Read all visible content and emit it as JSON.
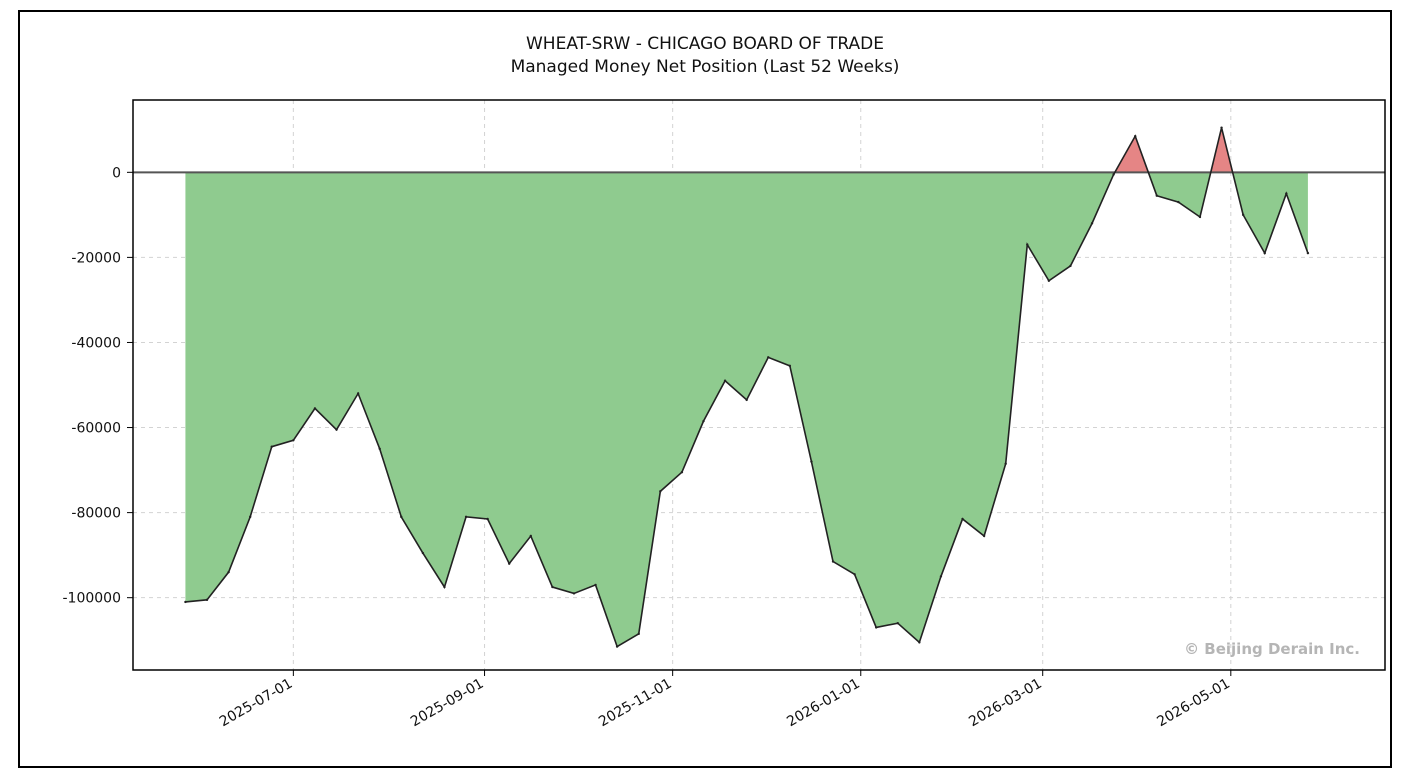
{
  "title_line1": "WHEAT-SRW - CHICAGO BOARD OF TRADE",
  "title_line2": "Managed Money Net Position (Last 52 Weeks)",
  "watermark": "© Beijing Derain Inc.",
  "colors": {
    "positive": "#e58585",
    "negative": "#8fcb8f",
    "line": "#222222",
    "grid": "#d3d3d3"
  },
  "chart_data": {
    "type": "area",
    "title": "WHEAT-SRW - CHICAGO BOARD OF TRADE",
    "subtitle": "Managed Money Net Position (Last 52 Weeks)",
    "xlabel": "",
    "ylabel": "",
    "ylim": [
      -117000,
      17000
    ],
    "xlim": [
      "2025-05-10",
      "2026-06-20"
    ],
    "grid": true,
    "y_ticks": [
      0,
      -20000,
      -40000,
      -60000,
      -80000,
      -100000
    ],
    "x_ticks": [
      "2025-07-01",
      "2025-09-01",
      "2025-11-01",
      "2026-01-01",
      "2026-03-01",
      "2026-05-01"
    ],
    "x": [
      "2025-05-27",
      "2025-06-03",
      "2025-06-10",
      "2025-06-17",
      "2025-06-24",
      "2025-07-01",
      "2025-07-08",
      "2025-07-15",
      "2025-07-22",
      "2025-07-29",
      "2025-08-05",
      "2025-08-12",
      "2025-08-19",
      "2025-08-26",
      "2025-09-02",
      "2025-09-09",
      "2025-09-16",
      "2025-09-23",
      "2025-09-30",
      "2025-10-07",
      "2025-10-14",
      "2025-10-21",
      "2025-10-28",
      "2025-11-04",
      "2025-11-11",
      "2025-11-18",
      "2025-11-25",
      "2025-12-02",
      "2025-12-09",
      "2025-12-16",
      "2025-12-23",
      "2025-12-30",
      "2026-01-06",
      "2026-01-13",
      "2026-01-20",
      "2026-01-27",
      "2026-02-03",
      "2026-02-10",
      "2026-02-17",
      "2026-02-24",
      "2026-03-03",
      "2026-03-10",
      "2026-03-17",
      "2026-03-24",
      "2026-03-31",
      "2026-04-07",
      "2026-04-14",
      "2026-04-21",
      "2026-04-28",
      "2026-05-05",
      "2026-05-12",
      "2026-05-19",
      "2026-05-26"
    ],
    "values": [
      -101000,
      -100500,
      -94000,
      -81000,
      -64500,
      -63000,
      -55500,
      -60500,
      -52000,
      -65000,
      -81000,
      -89500,
      -97500,
      -81000,
      -81500,
      -92000,
      -85500,
      -97500,
      -99000,
      -97000,
      -111500,
      -108500,
      -75000,
      -70500,
      -58500,
      -49000,
      -53500,
      -43500,
      -45500,
      -68000,
      -91500,
      -94500,
      -107000,
      -106000,
      -110500,
      -95000,
      -81500,
      -85500,
      -68500,
      -17000,
      -25500,
      -22000,
      -12000,
      -500,
      8500,
      -5500,
      -7000,
      -10500,
      10500,
      -10000,
      -19000,
      -5000,
      -19000
    ]
  }
}
